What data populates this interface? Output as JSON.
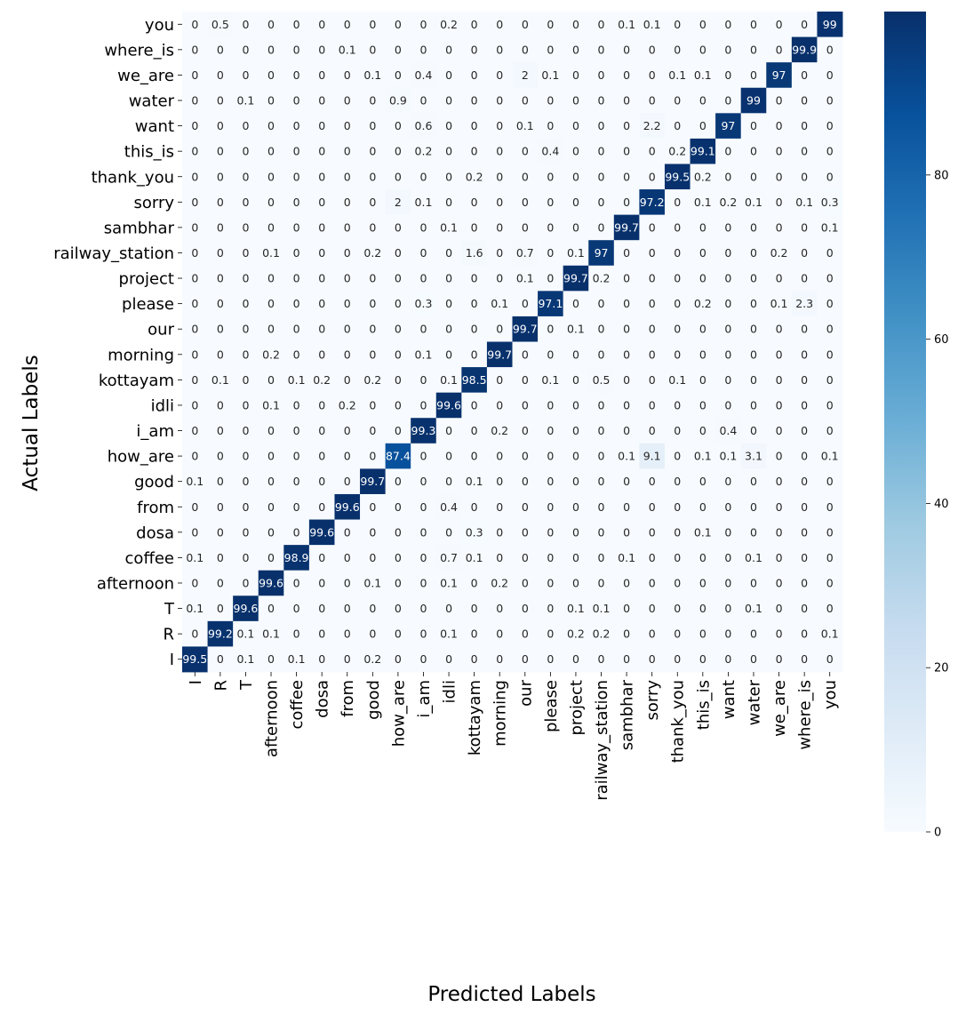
{
  "chart_data": {
    "type": "heatmap",
    "xlabel": "Predicted Labels",
    "ylabel": "Actual Labels",
    "colormap": "Blues",
    "colorbar": {
      "min": 0,
      "max": 99.9,
      "ticks": [
        0,
        20,
        40,
        60,
        80
      ]
    },
    "x_categories": [
      "I",
      "R",
      "T",
      "afternoon",
      "coffee",
      "dosa",
      "from",
      "good",
      "how_are",
      "i_am",
      "idli",
      "kottayam",
      "morning",
      "our",
      "please",
      "project",
      "railway_station",
      "sambhar",
      "sorry",
      "thank_you",
      "this_is",
      "want",
      "water",
      "we_are",
      "where_is",
      "you"
    ],
    "y_categories": [
      "you",
      "where_is",
      "we_are",
      "water",
      "want",
      "this_is",
      "thank_you",
      "sorry",
      "sambhar",
      "railway_station",
      "project",
      "please",
      "our",
      "morning",
      "kottayam",
      "idli",
      "i_am",
      "how_are",
      "good",
      "from",
      "dosa",
      "coffee",
      "afternoon",
      "T",
      "R",
      "I"
    ],
    "values": [
      [
        "0",
        "0.5",
        "0",
        "0",
        "0",
        "0",
        "0",
        "0",
        "0",
        "0",
        "0.2",
        "0",
        "0",
        "0",
        "0",
        "0",
        "0",
        "0.1",
        "0.1",
        "0",
        "0",
        "0",
        "0",
        "0",
        "0",
        "99"
      ],
      [
        "0",
        "0",
        "0",
        "0",
        "0",
        "0",
        "0.1",
        "0",
        "0",
        "0",
        "0",
        "0",
        "0",
        "0",
        "0",
        "0",
        "0",
        "0",
        "0",
        "0",
        "0",
        "0",
        "0",
        "0",
        "99.9",
        "0"
      ],
      [
        "0",
        "0",
        "0",
        "0",
        "0",
        "0",
        "0",
        "0.1",
        "0",
        "0.4",
        "0",
        "0",
        "0",
        "2",
        "0.1",
        "0",
        "0",
        "0",
        "0",
        "0.1",
        "0.1",
        "0",
        "0",
        "97",
        "0",
        "0"
      ],
      [
        "0",
        "0",
        "0.1",
        "0",
        "0",
        "0",
        "0",
        "0",
        "0.9",
        "0",
        "0",
        "0",
        "0",
        "0",
        "0",
        "0",
        "0",
        "0",
        "0",
        "0",
        "0",
        "0",
        "99",
        "0",
        "0",
        "0"
      ],
      [
        "0",
        "0",
        "0",
        "0",
        "0",
        "0",
        "0",
        "0",
        "0",
        "0.6",
        "0",
        "0",
        "0",
        "0.1",
        "0",
        "0",
        "0",
        "0",
        "2.2",
        "0",
        "0",
        "97",
        "0",
        "0",
        "0",
        "0"
      ],
      [
        "0",
        "0",
        "0",
        "0",
        "0",
        "0",
        "0",
        "0",
        "0",
        "0.2",
        "0",
        "0",
        "0",
        "0",
        "0.4",
        "0",
        "0",
        "0",
        "0",
        "0.2",
        "99.1",
        "0",
        "0",
        "0",
        "0",
        "0"
      ],
      [
        "0",
        "0",
        "0",
        "0",
        "0",
        "0",
        "0",
        "0",
        "0",
        "0",
        "0",
        "0.2",
        "0",
        "0",
        "0",
        "0",
        "0",
        "0",
        "0",
        "99.5",
        "0.2",
        "0",
        "0",
        "0",
        "0",
        "0"
      ],
      [
        "0",
        "0",
        "0",
        "0",
        "0",
        "0",
        "0",
        "0",
        "2",
        "0.1",
        "0",
        "0",
        "0",
        "0",
        "0",
        "0",
        "0",
        "0",
        "97.2",
        "0",
        "0.1",
        "0.2",
        "0.1",
        "0",
        "0.1",
        "0.3"
      ],
      [
        "0",
        "0",
        "0",
        "0",
        "0",
        "0",
        "0",
        "0",
        "0",
        "0",
        "0.1",
        "0",
        "0",
        "0",
        "0",
        "0",
        "0",
        "99.7",
        "0",
        "0",
        "0",
        "0",
        "0",
        "0",
        "0",
        "0.1"
      ],
      [
        "0",
        "0",
        "0",
        "0.1",
        "0",
        "0",
        "0",
        "0.2",
        "0",
        "0",
        "0",
        "1.6",
        "0",
        "0.7",
        "0",
        "0.1",
        "97",
        "0",
        "0",
        "0",
        "0",
        "0",
        "0",
        "0.2",
        "0",
        "0"
      ],
      [
        "0",
        "0",
        "0",
        "0",
        "0",
        "0",
        "0",
        "0",
        "0",
        "0",
        "0",
        "0",
        "0",
        "0.1",
        "0",
        "99.7",
        "0.2",
        "0",
        "0",
        "0",
        "0",
        "0",
        "0",
        "0",
        "0",
        "0"
      ],
      [
        "0",
        "0",
        "0",
        "0",
        "0",
        "0",
        "0",
        "0",
        "0",
        "0.3",
        "0",
        "0",
        "0.1",
        "0",
        "97.1",
        "0",
        "0",
        "0",
        "0",
        "0",
        "0.2",
        "0",
        "0",
        "0.1",
        "2.3",
        "0"
      ],
      [
        "0",
        "0",
        "0",
        "0",
        "0",
        "0",
        "0",
        "0",
        "0",
        "0",
        "0",
        "0",
        "0",
        "99.7",
        "0",
        "0.1",
        "0",
        "0",
        "0",
        "0",
        "0",
        "0",
        "0",
        "0",
        "0",
        "0"
      ],
      [
        "0",
        "0",
        "0",
        "0.2",
        "0",
        "0",
        "0",
        "0",
        "0",
        "0.1",
        "0",
        "0",
        "99.7",
        "0",
        "0",
        "0",
        "0",
        "0",
        "0",
        "0",
        "0",
        "0",
        "0",
        "0",
        "0",
        "0"
      ],
      [
        "0",
        "0.1",
        "0",
        "0",
        "0.1",
        "0.2",
        "0",
        "0.2",
        "0",
        "0",
        "0.1",
        "98.5",
        "0",
        "0",
        "0.1",
        "0",
        "0.5",
        "0",
        "0",
        "0.1",
        "0",
        "0",
        "0",
        "0",
        "0",
        "0"
      ],
      [
        "0",
        "0",
        "0",
        "0.1",
        "0",
        "0",
        "0.2",
        "0",
        "0",
        "0",
        "99.6",
        "0",
        "0",
        "0",
        "0",
        "0",
        "0",
        "0",
        "0",
        "0",
        "0",
        "0",
        "0",
        "0",
        "0",
        "0"
      ],
      [
        "0",
        "0",
        "0",
        "0",
        "0",
        "0",
        "0",
        "0",
        "0",
        "99.3",
        "0",
        "0",
        "0.2",
        "0",
        "0",
        "0",
        "0",
        "0",
        "0",
        "0",
        "0",
        "0.4",
        "0",
        "0",
        "0",
        "0"
      ],
      [
        "0",
        "0",
        "0",
        "0",
        "0",
        "0",
        "0",
        "0",
        "87.4",
        "0",
        "0",
        "0",
        "0",
        "0",
        "0",
        "0",
        "0",
        "0.1",
        "9.1",
        "0",
        "0.1",
        "0.1",
        "3.1",
        "0",
        "0",
        "0.1"
      ],
      [
        "0.1",
        "0",
        "0",
        "0",
        "0",
        "0",
        "0",
        "99.7",
        "0",
        "0",
        "0",
        "0.1",
        "0",
        "0",
        "0",
        "0",
        "0",
        "0",
        "0",
        "0",
        "0",
        "0",
        "0",
        "0",
        "0",
        "0"
      ],
      [
        "0",
        "0",
        "0",
        "0",
        "0",
        "0",
        "99.6",
        "0",
        "0",
        "0",
        "0.4",
        "0",
        "0",
        "0",
        "0",
        "0",
        "0",
        "0",
        "0",
        "0",
        "0",
        "0",
        "0",
        "0",
        "0",
        "0"
      ],
      [
        "0",
        "0",
        "0",
        "0",
        "0",
        "99.6",
        "0",
        "0",
        "0",
        "0",
        "0",
        "0.3",
        "0",
        "0",
        "0",
        "0",
        "0",
        "0",
        "0",
        "0",
        "0.1",
        "0",
        "0",
        "0",
        "0",
        "0"
      ],
      [
        "0.1",
        "0",
        "0",
        "0",
        "98.9",
        "0",
        "0",
        "0",
        "0",
        "0",
        "0.7",
        "0.1",
        "0",
        "0",
        "0",
        "0",
        "0",
        "0.1",
        "0",
        "0",
        "0",
        "0",
        "0.1",
        "0",
        "0",
        "0"
      ],
      [
        "0",
        "0",
        "0",
        "99.6",
        "0",
        "0",
        "0",
        "0.1",
        "0",
        "0",
        "0.1",
        "0",
        "0.2",
        "0",
        "0",
        "0",
        "0",
        "0",
        "0",
        "0",
        "0",
        "0",
        "0",
        "0",
        "0",
        "0"
      ],
      [
        "0.1",
        "0",
        "99.6",
        "0",
        "0",
        "0",
        "0",
        "0",
        "0",
        "0",
        "0",
        "0",
        "0",
        "0",
        "0",
        "0.1",
        "0.1",
        "0",
        "0",
        "0",
        "0",
        "0",
        "0.1",
        "0",
        "0",
        "0"
      ],
      [
        "0",
        "99.2",
        "0.1",
        "0.1",
        "0",
        "0",
        "0",
        "0",
        "0",
        "0",
        "0.1",
        "0",
        "0",
        "0",
        "0",
        "0.2",
        "0.2",
        "0",
        "0",
        "0",
        "0",
        "0",
        "0",
        "0",
        "0",
        "0.1"
      ],
      [
        "99.5",
        "0",
        "0.1",
        "0",
        "0.1",
        "0",
        "0",
        "0.2",
        "0",
        "0",
        "0",
        "0",
        "0",
        "0",
        "0",
        "0",
        "0",
        "0",
        "0",
        "0",
        "0",
        "0",
        "0",
        "0",
        "0",
        "0"
      ]
    ]
  }
}
